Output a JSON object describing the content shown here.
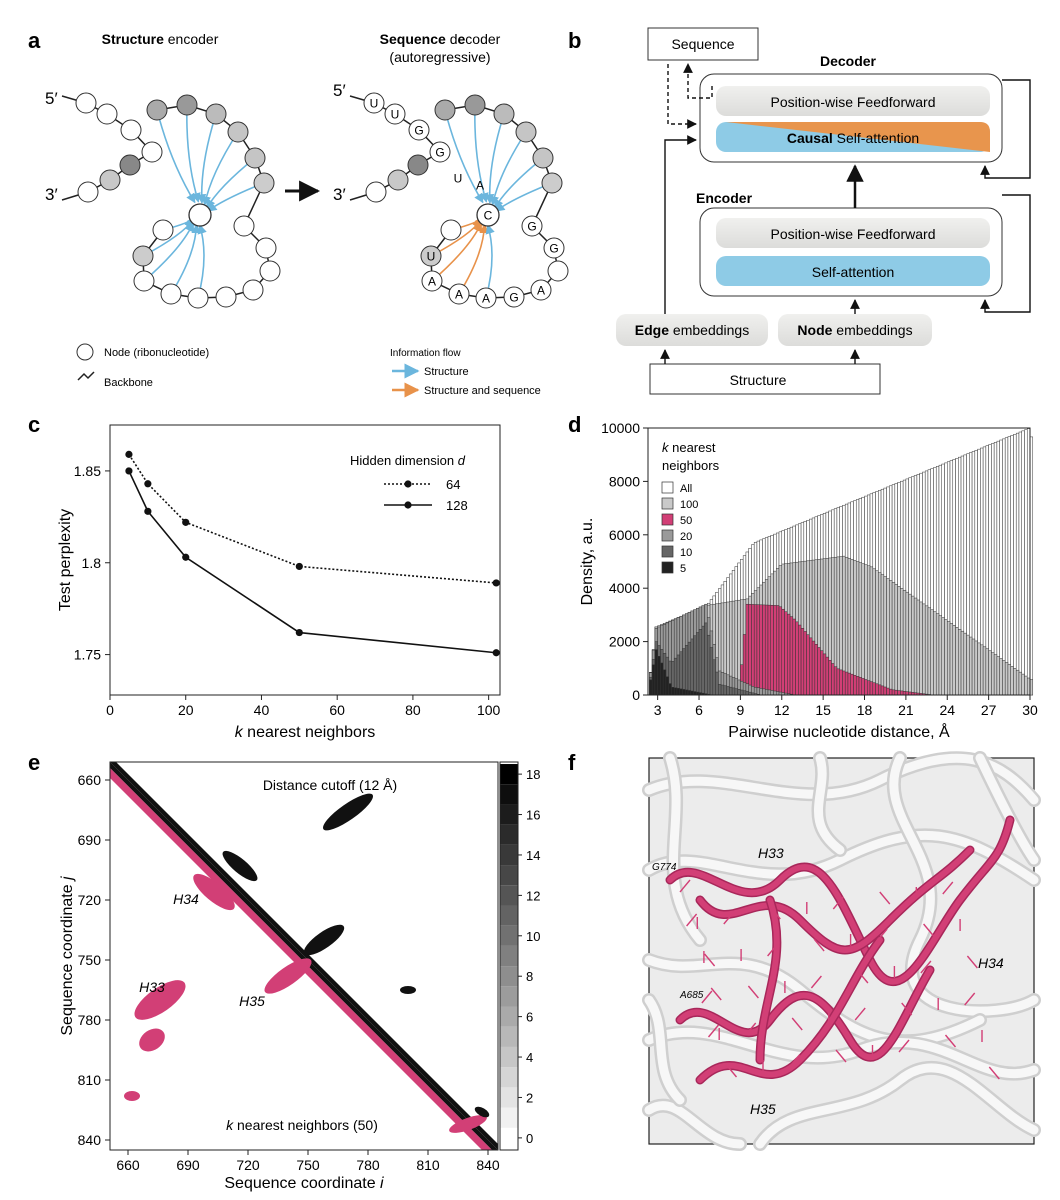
{
  "panel_labels": {
    "a": "a",
    "b": "b",
    "c": "c",
    "d": "d",
    "e": "e",
    "f": "f"
  },
  "panel_a": {
    "encoder_title_bold": "Structure",
    "encoder_title_rest": " encoder",
    "decoder_title_bold1": "Sequence",
    "decoder_title_mid": " d",
    "decoder_title_bold2": "e",
    "decoder_title_rest": "coder",
    "decoder_subtitle": "(autoregressive)",
    "five_prime": "5′",
    "three_prime": "3′",
    "decoder_letters_upper": [
      "U",
      "U",
      "G",
      "G",
      "U",
      "A",
      "C",
      "G"
    ],
    "decoder_letters_lower": [
      "U",
      "A",
      "A",
      "A",
      "G",
      "A",
      "G"
    ],
    "legend_node": "Node (ribonucleotide)",
    "legend_backbone": "Backbone",
    "legend_flow_title": "Information flow",
    "legend_structure": "Structure",
    "legend_structure_sequence": "Structure and sequence",
    "colors": {
      "structure": "#6bb6dd",
      "sequence": "#e8924a"
    }
  },
  "panel_b": {
    "sequence_box": "Sequence",
    "decoder_title": "Decoder",
    "decoder_ff": "Position-wise Feedforward",
    "decoder_attn_bold": "Causal",
    "decoder_attn_rest": " Self-attention",
    "encoder_title": "Encoder",
    "encoder_ff": "Position-wise Feedforward",
    "encoder_attn": "Self-attention",
    "edge_bold": "Edge",
    "edge_rest": " embeddings",
    "node_bold": "Node",
    "node_rest": " embeddings",
    "structure_box": "Structure",
    "colors": {
      "attention": "#8ecbe6",
      "causal": "#e8954d",
      "ff": "#e6e6e4"
    }
  },
  "chart_data": [
    {
      "panel": "c",
      "type": "line",
      "xlabel_italic": "k",
      "xlabel_rest": " nearest neighbors",
      "ylabel": "Test perplexity",
      "xlim": [
        0,
        103
      ],
      "ylim": [
        1.728,
        1.875
      ],
      "xticks": [
        0,
        20,
        40,
        60,
        80,
        100
      ],
      "yticks": [
        1.75,
        1.8,
        1.85
      ],
      "ytick_labels": [
        "1.75",
        "1.8",
        "1.85"
      ],
      "legend_title": "Hidden dimension",
      "legend_title_italic": "d",
      "legend_position": "top-right",
      "x": [
        5,
        10,
        20,
        50,
        102
      ],
      "series": [
        {
          "name": "64",
          "style": "dotted",
          "values": [
            1.859,
            1.843,
            1.822,
            1.798,
            1.789
          ]
        },
        {
          "name": "128",
          "style": "solid",
          "values": [
            1.85,
            1.828,
            1.803,
            1.762,
            1.751
          ]
        }
      ]
    },
    {
      "panel": "d",
      "type": "bar",
      "xlabel": "Pairwise nucleotide distance, Å",
      "ylabel": "Density, a.u.",
      "xlim": [
        2.3,
        30
      ],
      "ylim": [
        0,
        10000
      ],
      "xticks": [
        3,
        6,
        9,
        12,
        15,
        18,
        21,
        24,
        27,
        30
      ],
      "yticks": [
        0,
        2000,
        4000,
        6000,
        8000,
        10000
      ],
      "legend_title_italic": "k",
      "legend_title_rest": " nearest",
      "legend_title_line2": "neighbors",
      "legend_position": "top-left",
      "series": [
        {
          "name": "All",
          "color": "#ffffff",
          "peaks": [
            [
              2.9,
              2550
            ],
            [
              6.5,
              3300
            ],
            [
              10,
              5700
            ],
            [
              16,
              7000
            ],
            [
              30,
              10000
            ]
          ]
        },
        {
          "name": "100",
          "color": "#c9c9c9",
          "peaks": [
            [
              2.9,
              2550
            ],
            [
              6.5,
              3350
            ],
            [
              9.5,
              3600
            ],
            [
              12,
              4900
            ],
            [
              16.5,
              5200
            ],
            [
              18.5,
              4800
            ],
            [
              30,
              600
            ]
          ]
        },
        {
          "name": "50",
          "color": "#d23f76",
          "peaks": [
            [
              9.5,
              3400
            ],
            [
              11.8,
              3350
            ],
            [
              13,
              2800
            ],
            [
              16,
              1000
            ],
            [
              20,
              200
            ]
          ]
        },
        {
          "name": "20",
          "color": "#9a9a9a",
          "peaks": [
            [
              2.9,
              2500
            ],
            [
              6.5,
              3400
            ],
            [
              7.5,
              900
            ],
            [
              10,
              300
            ]
          ]
        },
        {
          "name": "10",
          "color": "#666666",
          "peaks": [
            [
              2.9,
              2000
            ],
            [
              4,
              1200
            ],
            [
              6.5,
              2700
            ],
            [
              7.5,
              400
            ]
          ]
        },
        {
          "name": "5",
          "color": "#222222",
          "peaks": [
            [
              2.9,
              1700
            ],
            [
              3.3,
              1200
            ],
            [
              4,
              300
            ]
          ]
        }
      ]
    },
    {
      "panel": "e",
      "type": "heatmap",
      "xlabel": "Sequence coordinate",
      "xlabel_italic": "i",
      "ylabel": "Sequence coordinate",
      "ylabel_italic": "j",
      "xlim": [
        651,
        845
      ],
      "ylim": [
        651,
        845
      ],
      "xticks": [
        660,
        690,
        720,
        750,
        780,
        810,
        840
      ],
      "yticks": [
        660,
        690,
        720,
        750,
        780,
        810,
        840
      ],
      "upper_label": "Distance cutoff (12 Å)",
      "lower_label": "k nearest neighbors (50)",
      "helix_labels": [
        "H34",
        "H33",
        "H35"
      ],
      "colorbar_ticks": [
        0,
        2,
        4,
        6,
        8,
        10,
        12,
        14,
        16,
        18
      ],
      "colors": {
        "lower": "#d23f76",
        "upper": "#111111"
      }
    }
  ],
  "panel_f": {
    "labels": [
      "H33",
      "G774",
      "H34",
      "A685",
      "H35"
    ],
    "colors": {
      "highlight": "#d23f76",
      "background": "#e9e9e9"
    }
  }
}
